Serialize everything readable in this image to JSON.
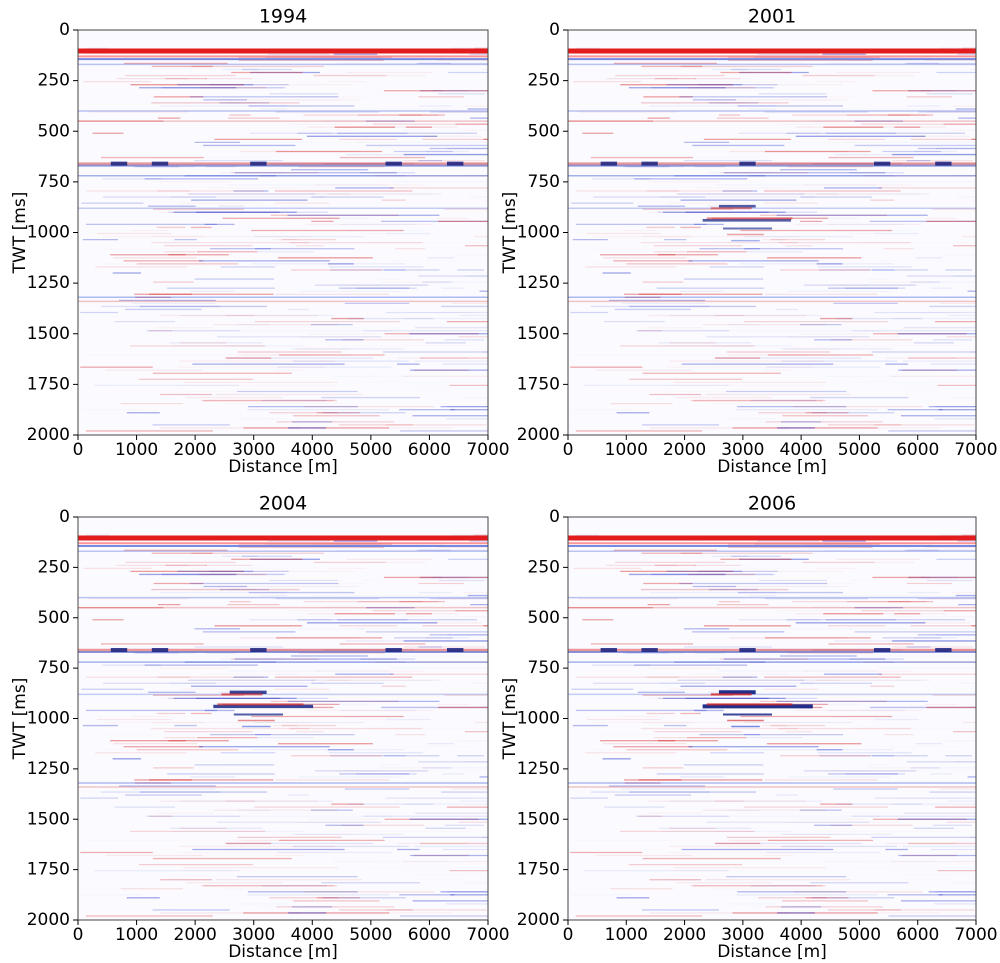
{
  "chart_data": [
    {
      "type": "image",
      "title": "1994",
      "xlabel": "Distance [m]",
      "ylabel": "TWT [ms]",
      "xlim": [
        0,
        7000
      ],
      "xticks": [
        0,
        1000,
        2000,
        3000,
        4000,
        5000,
        6000,
        7000
      ],
      "ylim": [
        0,
        2000
      ],
      "yticks": [
        0,
        250,
        500,
        750,
        1000,
        1250,
        1500,
        1750,
        2000
      ],
      "invert_y": true
    },
    {
      "type": "image",
      "title": "2001",
      "xlabel": "Distance [m]",
      "ylabel": "TWT [ms]",
      "xlim": [
        0,
        7000
      ],
      "xticks": [
        0,
        1000,
        2000,
        3000,
        4000,
        5000,
        6000,
        7000
      ],
      "ylim": [
        0,
        2000
      ],
      "yticks": [
        0,
        250,
        500,
        750,
        1000,
        1250,
        1500,
        1750,
        2000
      ],
      "invert_y": true
    },
    {
      "type": "image",
      "title": "2004",
      "xlabel": "Distance [m]",
      "ylabel": "TWT [ms]",
      "xlim": [
        0,
        7000
      ],
      "xticks": [
        0,
        1000,
        2000,
        3000,
        4000,
        5000,
        6000,
        7000
      ],
      "ylim": [
        0,
        2000
      ],
      "yticks": [
        0,
        250,
        500,
        750,
        1000,
        1250,
        1500,
        1750,
        2000
      ],
      "invert_y": true
    },
    {
      "type": "image",
      "title": "2006",
      "xlabel": "Distance [m]",
      "ylabel": "TWT [ms]",
      "xlim": [
        0,
        7000
      ],
      "xticks": [
        0,
        1000,
        2000,
        3000,
        4000,
        5000,
        6000,
        7000
      ],
      "ylim": [
        0,
        2000
      ],
      "yticks": [
        0,
        250,
        500,
        750,
        1000,
        1250,
        1500,
        1750,
        2000
      ],
      "invert_y": true
    }
  ]
}
